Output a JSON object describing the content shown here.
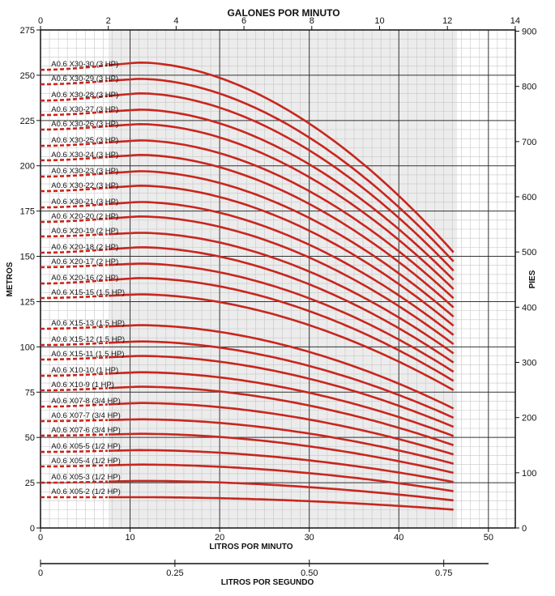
{
  "chart_data": {
    "type": "line",
    "x_axis_bottom": {
      "label": "LITROS POR MINUTO",
      "ticks": [
        "0",
        "10",
        "20",
        "30",
        "40",
        "50"
      ],
      "range": [
        0,
        53
      ]
    },
    "x_axis_top": {
      "label": "GALONES POR MINUTO",
      "ticks": [
        "0",
        "2",
        "4",
        "6",
        "8",
        "10",
        "12",
        "14"
      ]
    },
    "x_axis_secondary": {
      "label": "LITROS POR SEGUNDO",
      "ticks": [
        "0",
        "0.25",
        "0.50",
        "0.75"
      ]
    },
    "y_axis_left": {
      "label": "METROS",
      "ticks": [
        "0",
        "25",
        "50",
        "75",
        "100",
        "125",
        "150",
        "175",
        "200",
        "225",
        "250",
        "275"
      ],
      "range": [
        0,
        275
      ]
    },
    "y_axis_right": {
      "label": "PIES",
      "ticks": [
        "0",
        "100",
        "200",
        "300",
        "400",
        "500",
        "600",
        "700",
        "800",
        "900"
      ]
    },
    "operating_range_lpm": [
      7.6,
      46.5
    ],
    "grid": true,
    "line_color": "#c8261e",
    "series": [
      {
        "name": "A0.6 X30-30 (3 HP)",
        "shutoff": 253,
        "peak": 257,
        "at_max": 150
      },
      {
        "name": "A0.6 X30-29 (3 HP)",
        "shutoff": 245,
        "peak": 248,
        "at_max": 145
      },
      {
        "name": "A0.6 X30-28 (3 HP)",
        "shutoff": 236,
        "peak": 240,
        "at_max": 140
      },
      {
        "name": "A0.6 X30-27 (3 HP)",
        "shutoff": 228,
        "peak": 231,
        "at_max": 135
      },
      {
        "name": "A0.6 X30-26 (3 HP)",
        "shutoff": 220,
        "peak": 223,
        "at_max": 130
      },
      {
        "name": "A0.6 X30-25 (3 HP)",
        "shutoff": 211,
        "peak": 214,
        "at_max": 125
      },
      {
        "name": "A0.6 X30-24 (3 HP)",
        "shutoff": 203,
        "peak": 206,
        "at_max": 120
      },
      {
        "name": "A0.6 X30-23 (3 HP)",
        "shutoff": 194,
        "peak": 197,
        "at_max": 115
      },
      {
        "name": "A0.6 X30-22 (3 HP)",
        "shutoff": 186,
        "peak": 189,
        "at_max": 110
      },
      {
        "name": "A0.6 X30-21 (3 HP)",
        "shutoff": 177,
        "peak": 180,
        "at_max": 105
      },
      {
        "name": "A0.6 X20-20 (2 HP)",
        "shutoff": 169,
        "peak": 172,
        "at_max": 100
      },
      {
        "name": "A0.6 X20-19 (2 HP)",
        "shutoff": 161,
        "peak": 163,
        "at_max": 95
      },
      {
        "name": "A0.6 X20-18 (2 HP)",
        "shutoff": 152,
        "peak": 155,
        "at_max": 90
      },
      {
        "name": "A0.6 X20-17 (2 HP)",
        "shutoff": 144,
        "peak": 146,
        "at_max": 85
      },
      {
        "name": "A0.6 X20-16 (2 HP)",
        "shutoff": 135,
        "peak": 138,
        "at_max": 80
      },
      {
        "name": "A0.6 X15-15 (1.5 HP)",
        "shutoff": 127,
        "peak": 129,
        "at_max": 75
      },
      {
        "name": "A0.6 X15-13 (1.5 HP)",
        "shutoff": 110,
        "peak": 112,
        "at_max": 65
      },
      {
        "name": "A0.6 X15-12 (1.5 HP)",
        "shutoff": 101,
        "peak": 103,
        "at_max": 60
      },
      {
        "name": "A0.6 X15-11 (1.5 HP)",
        "shutoff": 93,
        "peak": 95,
        "at_max": 55
      },
      {
        "name": "A0.6 X10-10  (1 HP)",
        "shutoff": 84,
        "peak": 86,
        "at_max": 50
      },
      {
        "name": "A0.6 X10-9 (1 HP)",
        "shutoff": 76,
        "peak": 78,
        "at_max": 45
      },
      {
        "name": "A0.6 X07-8 (3/4 HP)",
        "shutoff": 67,
        "peak": 69,
        "at_max": 40
      },
      {
        "name": "A0.6 X07-7 (3/4 HP)",
        "shutoff": 59,
        "peak": 60,
        "at_max": 35
      },
      {
        "name": "A0.6 X07-6 (3/4 HP)",
        "shutoff": 51,
        "peak": 52,
        "at_max": 30
      },
      {
        "name": "A0.6 X05-5 (1/2 HP)",
        "shutoff": 42,
        "peak": 43,
        "at_max": 25
      },
      {
        "name": "A0.6 X05-4 (1/2 HP)",
        "shutoff": 34,
        "peak": 35,
        "at_max": 20
      },
      {
        "name": "A0.6 X05-3 (1/2 HP)",
        "shutoff": 25,
        "peak": 26,
        "at_max": 15
      },
      {
        "name": "A0.6 X05-2 (1/2 HP)",
        "shutoff": 17,
        "peak": 17,
        "at_max": 10
      }
    ]
  }
}
